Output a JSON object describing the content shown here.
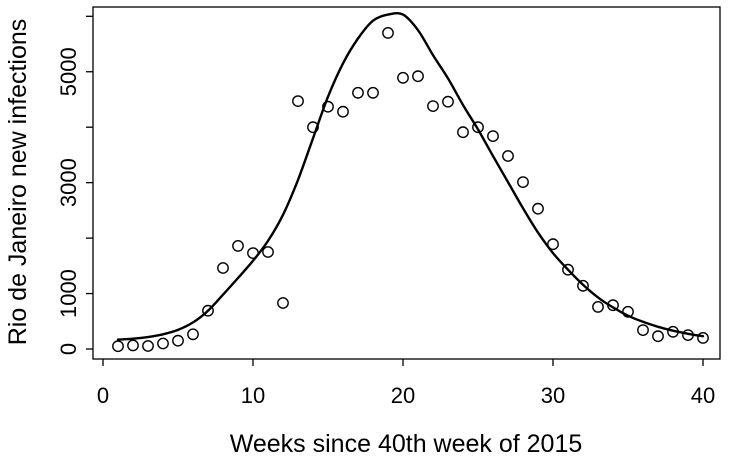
{
  "figure": {
    "background": "#ffffff",
    "foreground": "#000000"
  },
  "chart_data": {
    "type": "scatter",
    "title": "",
    "xlabel": "Weeks since 40th week of 2015",
    "ylabel": "Rio de Janeiro new infections",
    "grid": false,
    "legend_position": "none",
    "xlim": [
      -0.7,
      41.7
    ],
    "ylim": [
      -230,
      6230
    ],
    "x_ticks": [
      0,
      10,
      20,
      30,
      40
    ],
    "x_tick_labels": [
      "0",
      "10",
      "20",
      "30",
      "40"
    ],
    "y_ticks": [
      0,
      1000,
      2000,
      3000,
      4000,
      5000,
      6000
    ],
    "y_tick_labels": [
      "0",
      "1000",
      "",
      "3000",
      "",
      "5000",
      ""
    ],
    "series": [
      {
        "name": "observed-weekly-new-infections",
        "type": "scatter",
        "marker": "open-circle",
        "color": "#000000",
        "x": [
          1,
          2,
          3,
          4,
          5,
          6,
          7,
          8,
          9,
          10,
          11,
          12,
          13,
          14,
          15,
          16,
          17,
          18,
          19,
          20,
          21,
          22,
          23,
          24,
          25,
          26,
          27,
          28,
          29,
          30,
          31,
          32,
          33,
          34,
          35,
          36,
          37,
          38,
          39,
          40
        ],
        "y": [
          50,
          65,
          55,
          100,
          150,
          265,
          690,
          1460,
          1860,
          1730,
          1750,
          830,
          4470,
          4000,
          4370,
          4280,
          4620,
          4620,
          5700,
          4890,
          4920,
          4380,
          4460,
          3910,
          4000,
          3840,
          3480,
          3010,
          2530,
          1890,
          1430,
          1140,
          760,
          790,
          670,
          340,
          230,
          310,
          250,
          200
        ]
      },
      {
        "name": "fitted-epidemic-curve",
        "type": "line",
        "color": "#000000",
        "x": [
          1,
          2,
          3,
          4,
          5,
          6,
          7,
          8,
          9,
          10,
          11,
          12,
          13,
          14,
          15,
          16,
          17,
          18,
          19,
          20,
          21,
          22,
          23,
          24,
          25,
          26,
          27,
          28,
          29,
          30,
          31,
          32,
          33,
          34,
          35,
          36,
          37,
          38,
          39,
          40
        ],
        "y": [
          170,
          185,
          215,
          265,
          345,
          480,
          690,
          980,
          1280,
          1590,
          1950,
          2420,
          3050,
          3800,
          4550,
          5150,
          5600,
          5920,
          6030,
          6030,
          5750,
          5300,
          4880,
          4400,
          3960,
          3480,
          3010,
          2540,
          2100,
          1730,
          1430,
          1160,
          930,
          750,
          600,
          490,
          400,
          330,
          275,
          230
        ]
      }
    ]
  }
}
